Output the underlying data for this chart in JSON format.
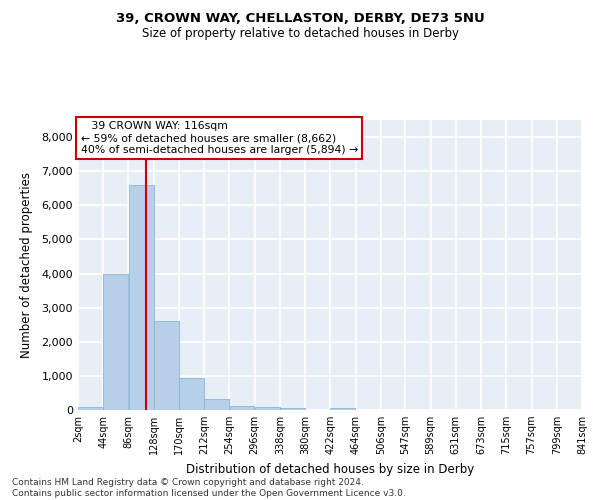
{
  "title1": "39, CROWN WAY, CHELLASTON, DERBY, DE73 5NU",
  "title2": "Size of property relative to detached houses in Derby",
  "xlabel": "Distribution of detached houses by size in Derby",
  "ylabel": "Number of detached properties",
  "annotation_line1": "   39 CROWN WAY: 116sqm",
  "annotation_line2": "← 59% of detached houses are smaller (8,662)",
  "annotation_line3": "40% of semi-detached houses are larger (5,894) →",
  "property_size_sqm": 116,
  "bin_edges": [
    2,
    44,
    86,
    128,
    170,
    212,
    254,
    296,
    338,
    380,
    422,
    464,
    506,
    547,
    589,
    631,
    673,
    715,
    757,
    799,
    841
  ],
  "bar_heights": [
    80,
    4000,
    6600,
    2600,
    950,
    320,
    130,
    100,
    60,
    0,
    60,
    0,
    0,
    0,
    0,
    0,
    0,
    0,
    0,
    0
  ],
  "bar_color": "#b8cfe8",
  "bar_edgecolor": "#7aafd4",
  "vline_color": "#cc0000",
  "vline_x": 116,
  "annotation_box_edgecolor": "#cc0000",
  "annotation_box_facecolor": "white",
  "background_color": "#e8eef5",
  "grid_color": "white",
  "ylim": [
    0,
    8500
  ],
  "yticks": [
    0,
    1000,
    2000,
    3000,
    4000,
    5000,
    6000,
    7000,
    8000
  ],
  "footer": "Contains HM Land Registry data © Crown copyright and database right 2024.\nContains public sector information licensed under the Open Government Licence v3.0."
}
